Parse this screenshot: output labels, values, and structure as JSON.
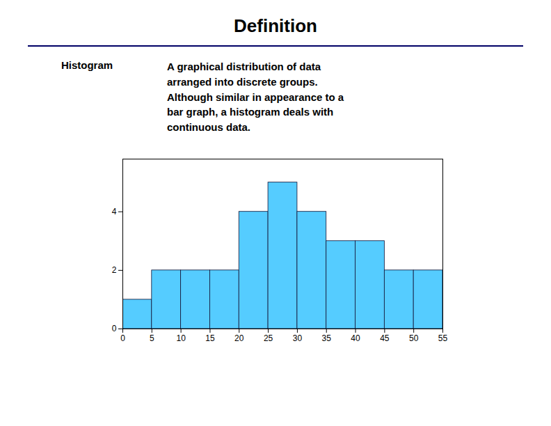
{
  "chart_data": {
    "type": "histogram",
    "title": "Definition",
    "annotations": [
      "Histogram",
      "A graphical distribution of data\narranged into discrete groups.\nAlthough similar in appearance to a\nbar graph, a histogram deals with\ncontinuous data."
    ],
    "bins": [
      0,
      5,
      10,
      15,
      20,
      25,
      30,
      35,
      40,
      45,
      50,
      55
    ],
    "values": [
      1,
      2,
      2,
      2,
      4,
      5,
      4,
      3,
      3,
      2,
      2
    ],
    "color": "#55CCFF",
    "xlim": [
      0,
      55
    ],
    "xticks": [
      0,
      5,
      10,
      15,
      20,
      25,
      30,
      35,
      40,
      45,
      50,
      55
    ],
    "ylim": [
      0,
      5.8
    ],
    "yticks": [
      0,
      2,
      4
    ],
    "grid": false
  }
}
